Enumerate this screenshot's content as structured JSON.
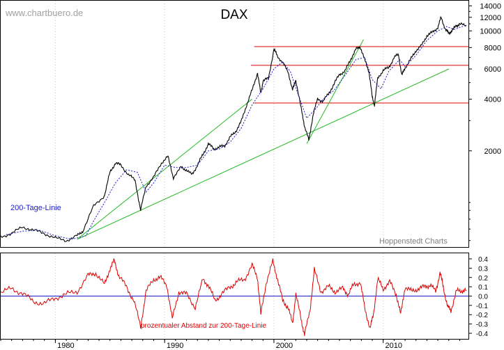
{
  "watermark": "www.chartbuero.de",
  "source": "Hoppenstedt Charts",
  "chart_data": [
    {
      "type": "line",
      "title": "DAX",
      "scale": "log",
      "ylim": [
        550,
        15000
      ],
      "xlim": [
        1975.0,
        2017.8
      ],
      "y_ticks": [
        2000,
        4000,
        6000,
        8000,
        10000,
        12000,
        14000
      ],
      "x_ticks": [
        1980,
        1990,
        2000,
        2010
      ],
      "grid": "vertical-dotted",
      "annotation": "200-Tage-Linie",
      "series": [
        {
          "key": "dax",
          "color": "#000000",
          "x": [
            1975.0,
            1976.0,
            1977.0,
            1978.0,
            1979.0,
            1980.0,
            1981.0,
            1982.0,
            1982.5,
            1983.5,
            1984.5,
            1985.0,
            1985.5,
            1986.0,
            1986.7,
            1987.3,
            1987.8,
            1988.3,
            1989.0,
            1989.7,
            1990.3,
            1990.8,
            1991.5,
            1992.0,
            1992.5,
            1993.0,
            1993.5,
            1994.0,
            1994.5,
            1995.0,
            1995.5,
            1996.0,
            1996.5,
            1997.0,
            1997.5,
            1998.0,
            1998.5,
            1998.8,
            1999.0,
            1999.5,
            2000.0,
            2000.3,
            2000.8,
            2001.3,
            2001.7,
            2002.0,
            2002.5,
            2002.8,
            2003.2,
            2003.6,
            2004.0,
            2004.5,
            2005.0,
            2005.5,
            2006.0,
            2006.5,
            2007.0,
            2007.5,
            2007.9,
            2008.3,
            2008.7,
            2009.0,
            2009.2,
            2009.5,
            2010.0,
            2010.5,
            2011.0,
            2011.4,
            2011.7,
            2012.0,
            2012.5,
            2013.0,
            2013.5,
            2014.0,
            2014.5,
            2015.0,
            2015.3,
            2015.7,
            2016.0,
            2016.3,
            2016.7,
            2017.0,
            2017.6
          ],
          "y": [
            630,
            660,
            720,
            690,
            660,
            620,
            600,
            640,
            680,
            950,
            1100,
            1500,
            1700,
            1650,
            1450,
            1350,
            900,
            1250,
            1400,
            1700,
            1850,
            1400,
            1600,
            1550,
            1450,
            1650,
            1900,
            2200,
            2050,
            2100,
            2150,
            2400,
            2600,
            2950,
            3700,
            4500,
            5700,
            4300,
            5100,
            5300,
            7800,
            7200,
            6500,
            5800,
            4500,
            5200,
            3500,
            2800,
            2300,
            3300,
            4000,
            3900,
            4300,
            4900,
            5600,
            5800,
            6800,
            7800,
            8100,
            6800,
            5800,
            4100,
            3700,
            5300,
            5900,
            6100,
            7000,
            7300,
            5500,
            6100,
            6800,
            7700,
            8200,
            9400,
            9800,
            10500,
            12000,
            10200,
            9700,
            10000,
            10800,
            10900,
            10800
          ]
        },
        {
          "key": "ma200",
          "color": "#1a1acc",
          "style": "dotted",
          "x": [
            1975.5,
            1977.0,
            1978.5,
            1980.0,
            1981.5,
            1982.8,
            1983.5,
            1984.5,
            1985.5,
            1986.5,
            1987.5,
            1988.3,
            1989.0,
            1990.0,
            1991.0,
            1992.0,
            1993.0,
            1994.0,
            1995.0,
            1996.0,
            1997.0,
            1998.0,
            1999.0,
            2000.0,
            2000.8,
            2001.5,
            2002.2,
            2003.0,
            2003.8,
            2004.5,
            2005.5,
            2006.5,
            2007.5,
            2008.3,
            2009.0,
            2009.8,
            2010.5,
            2011.5,
            2012.0,
            2013.0,
            2014.0,
            2015.0,
            2015.8,
            2016.5,
            2017.6
          ],
          "y": [
            650,
            680,
            690,
            640,
            610,
            640,
            780,
            1000,
            1300,
            1550,
            1500,
            1150,
            1300,
            1650,
            1600,
            1600,
            1650,
            2000,
            2050,
            2250,
            2700,
            3700,
            4600,
            6000,
            6600,
            5800,
            4300,
            3100,
            3500,
            4000,
            4500,
            5500,
            6800,
            7000,
            5200,
            4600,
            5800,
            6800,
            6200,
            7200,
            8800,
            10000,
            10600,
            10200,
            10800
          ]
        }
      ],
      "trendlines": [
        {
          "color": "#22b822",
          "x": [
            1982.0,
            2016.0
          ],
          "y": [
            610,
            6000
          ]
        },
        {
          "color": "#22b822",
          "x": [
            1982.0,
            1998.0
          ],
          "y": [
            610,
            4000
          ]
        },
        {
          "color": "#22b822",
          "x": [
            2003.0,
            2008.2
          ],
          "y": [
            2200,
            8900
          ]
        }
      ],
      "levels": [
        {
          "color": "#dd0000",
          "value": 8100,
          "x": [
            1998.2,
            2017.8
          ]
        },
        {
          "color": "#dd0000",
          "value": 6300,
          "x": [
            1997.9,
            2017.8
          ]
        },
        {
          "color": "#dd0000",
          "value": 3800,
          "x": [
            1998.2,
            2017.8
          ]
        }
      ]
    },
    {
      "type": "line",
      "title": "",
      "ylim": [
        -0.46,
        0.46
      ],
      "xlim": [
        1975.0,
        2017.8
      ],
      "y_ticks": [
        -0.4,
        -0.3,
        -0.2,
        -0.1,
        0.0,
        0.1,
        0.2,
        0.3,
        0.4
      ],
      "y_tick_labels": [
        "-0.4",
        "-0.3",
        "-0.2",
        "-0.1",
        "0.0",
        "0.1",
        "0.2",
        "0.3",
        "0.4"
      ],
      "x_tick_labels": [
        "1980",
        "1990",
        "2000",
        "2010"
      ],
      "annotation": "prozentualer Abstand zur 200-Tage-Linie",
      "baseline": 0.0,
      "series": [
        {
          "key": "abstand",
          "color": "#dd0000",
          "x": [
            1975.0,
            1976.0,
            1977.0,
            1978.0,
            1979.0,
            1980.0,
            1981.0,
            1982.0,
            1983.0,
            1983.7,
            1984.5,
            1985.0,
            1985.4,
            1985.8,
            1986.5,
            1987.2,
            1987.8,
            1988.3,
            1989.0,
            1989.6,
            1990.2,
            1990.7,
            1991.3,
            1992.0,
            1992.8,
            1993.5,
            1994.0,
            1994.6,
            1995.2,
            1996.0,
            1996.6,
            1997.3,
            1998.0,
            1998.5,
            1998.8,
            1999.3,
            1999.9,
            2000.3,
            2000.8,
            2001.3,
            2001.7,
            2002.0,
            2002.5,
            2002.8,
            2003.3,
            2003.7,
            2004.3,
            2005.0,
            2005.6,
            2006.3,
            2006.8,
            2007.3,
            2007.9,
            2008.3,
            2008.8,
            2009.1,
            2009.5,
            2010.0,
            2010.6,
            2011.2,
            2011.6,
            2012.0,
            2012.6,
            2013.2,
            2013.8,
            2014.3,
            2014.8,
            2015.2,
            2015.5,
            2015.9,
            2016.2,
            2016.7,
            2017.2,
            2017.6
          ],
          "y": [
            0.04,
            0.08,
            0.03,
            -0.06,
            -0.08,
            -0.02,
            0.02,
            0.05,
            0.22,
            0.25,
            0.12,
            0.3,
            0.38,
            0.22,
            0.1,
            -0.05,
            -0.33,
            0.05,
            0.18,
            0.2,
            0.12,
            -0.25,
            0.05,
            0.02,
            -0.12,
            0.18,
            0.12,
            -0.05,
            0.02,
            0.1,
            0.15,
            0.18,
            0.33,
            0.2,
            -0.2,
            0.15,
            0.37,
            0.2,
            -0.05,
            -0.12,
            -0.3,
            0.02,
            -0.25,
            -0.42,
            -0.15,
            0.28,
            0.05,
            0.1,
            0.05,
            0.08,
            0.02,
            0.12,
            0.15,
            -0.12,
            -0.35,
            -0.2,
            0.18,
            0.08,
            0.15,
            0.02,
            -0.2,
            0.1,
            0.05,
            0.08,
            0.1,
            0.12,
            0.05,
            0.25,
            0.1,
            -0.12,
            -0.15,
            0.05,
            0.06,
            0.06
          ]
        }
      ]
    }
  ]
}
